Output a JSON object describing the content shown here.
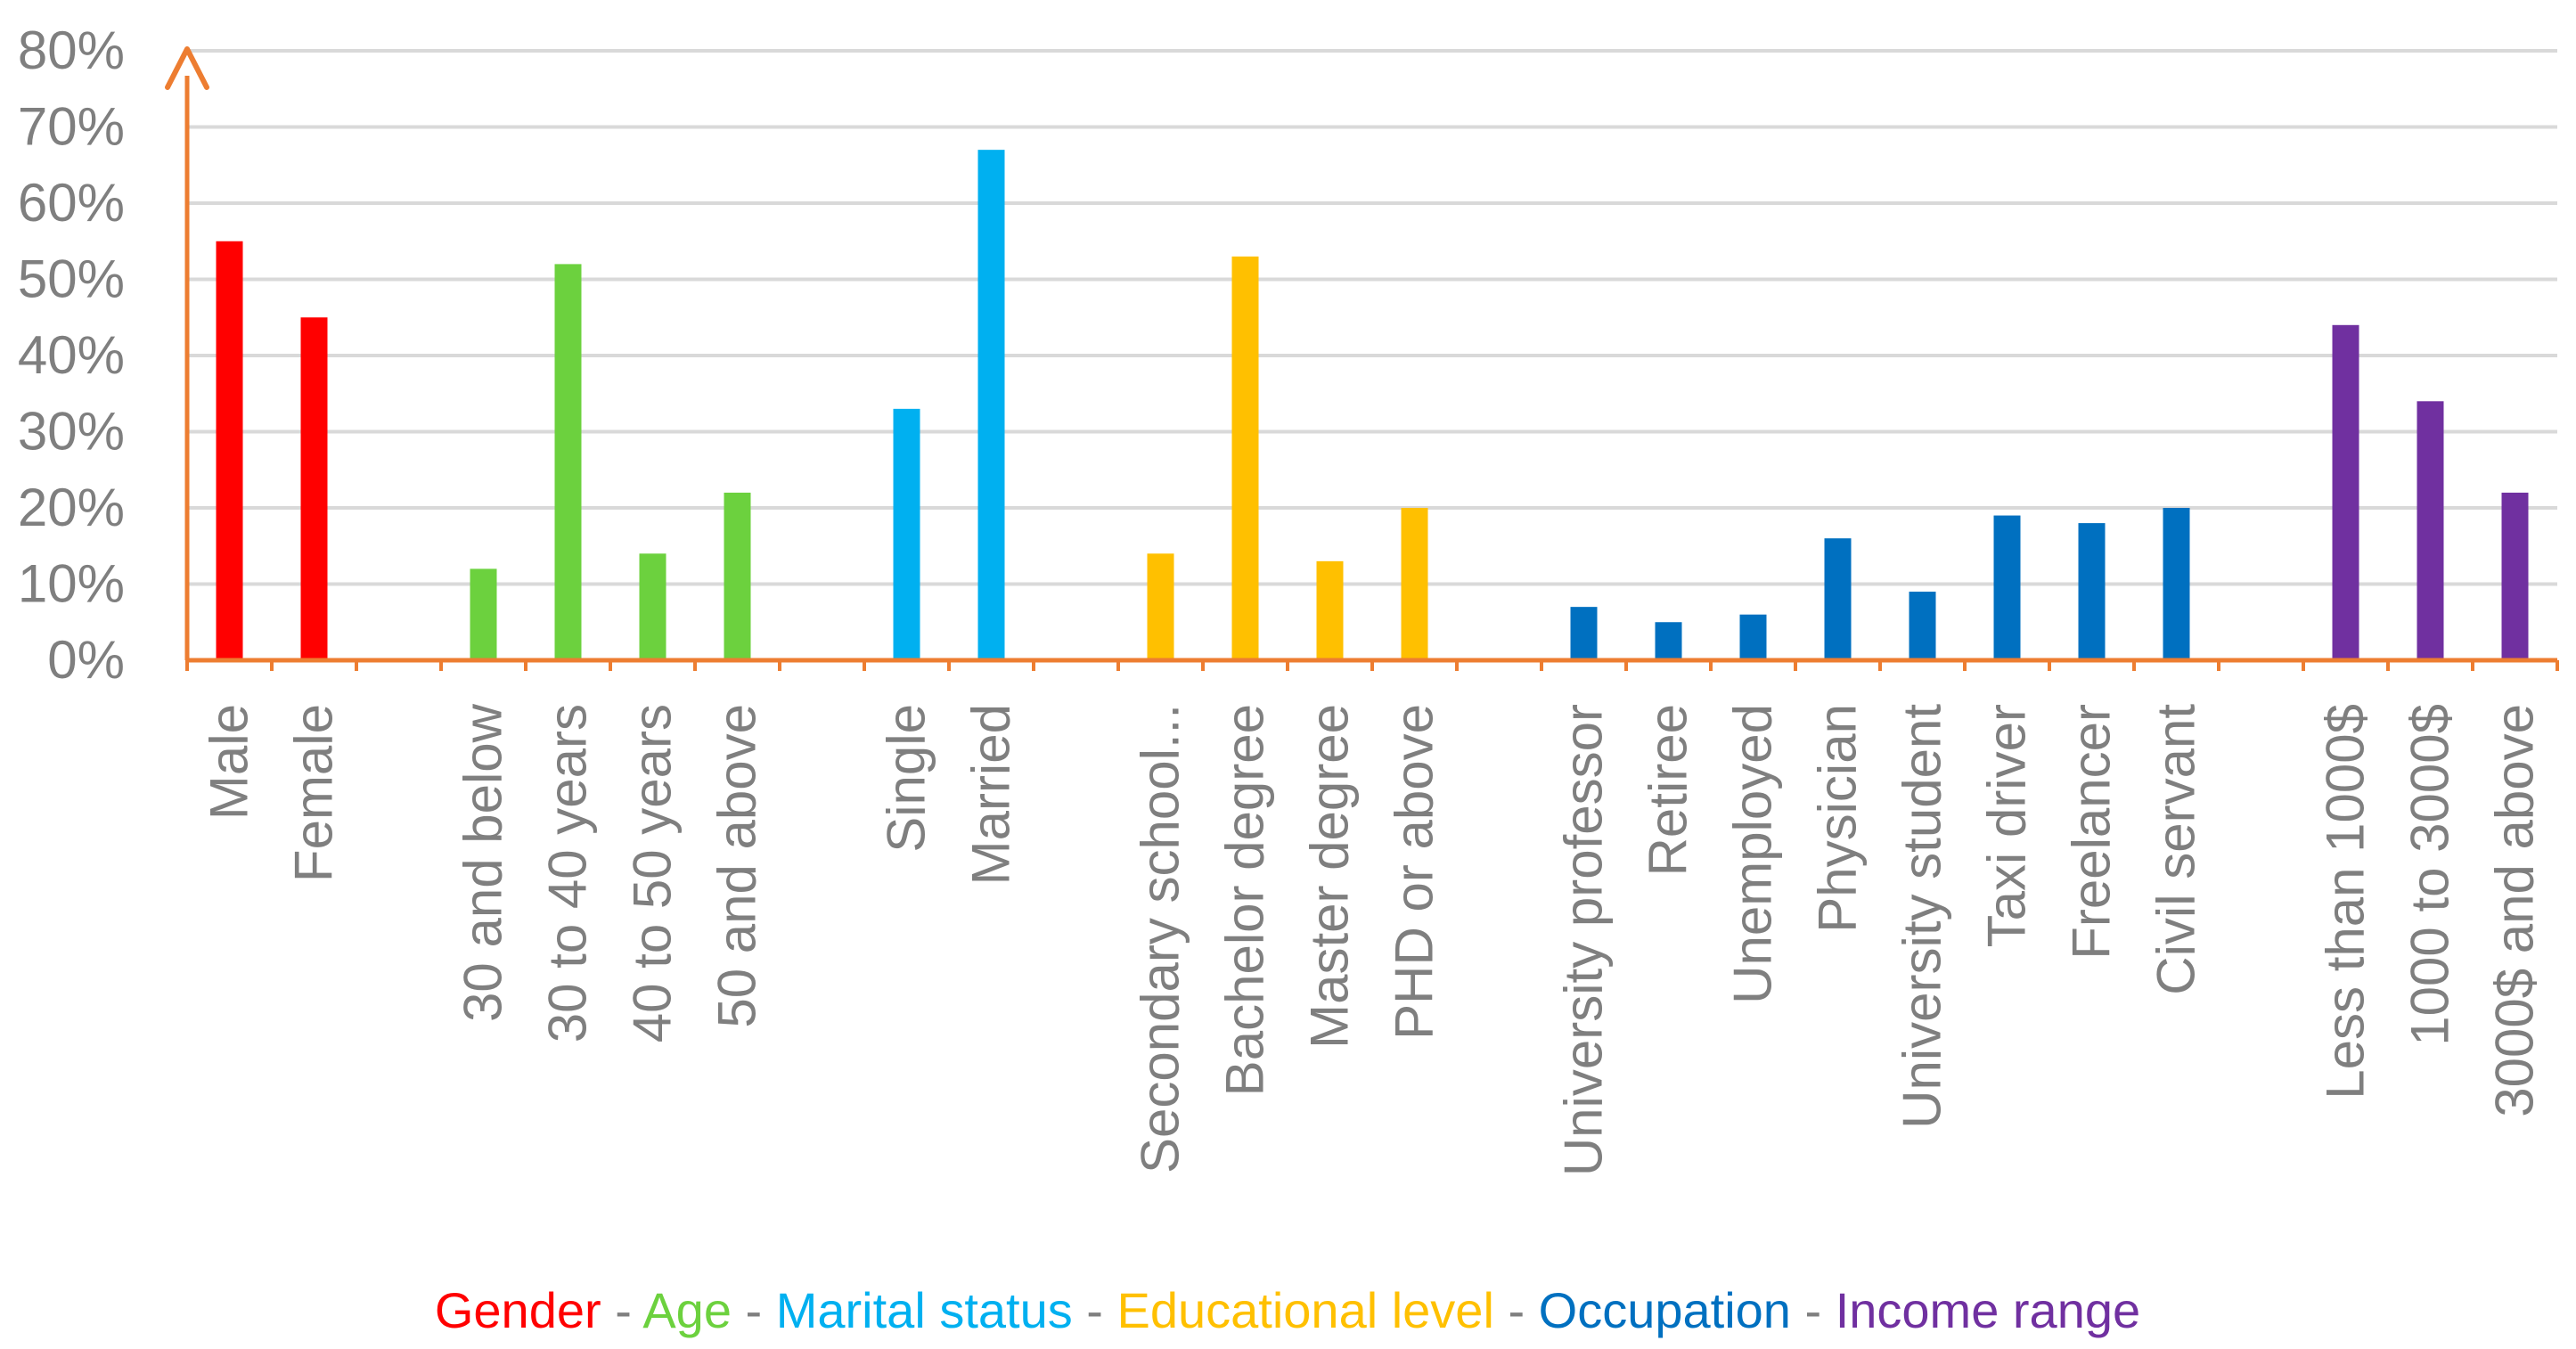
{
  "chart_data": {
    "type": "bar",
    "title": "",
    "xlabel": "",
    "ylabel": "",
    "ylim": [
      0,
      80
    ],
    "yticks": [
      "0%",
      "10%",
      "20%",
      "30%",
      "40%",
      "50%",
      "60%",
      "70%",
      "80%"
    ],
    "grid": true,
    "categories": [
      "Male",
      "Female",
      "",
      "30 and below",
      "30 to 40 years",
      "40 to 50 years",
      "50 and above",
      "",
      "Single",
      "Married",
      "",
      "Secondary school...",
      "Bachelor degree",
      "Master degree",
      "PHD or above",
      "",
      "University professor",
      "Retiree",
      "Unemployed",
      "Physician",
      "University student",
      "Taxi driver",
      "Freelancer",
      "Civil servant",
      "",
      "Less than 1000$",
      "1000 to 3000$",
      "3000$ and above"
    ],
    "values": [
      55,
      45,
      null,
      12,
      52,
      14,
      22,
      null,
      33,
      67,
      null,
      14,
      53,
      13,
      20,
      null,
      7,
      5,
      6,
      16,
      9,
      19,
      18,
      20,
      null,
      44,
      34,
      22
    ],
    "groups": [
      0,
      0,
      null,
      1,
      1,
      1,
      1,
      null,
      2,
      2,
      null,
      3,
      3,
      3,
      3,
      null,
      4,
      4,
      4,
      4,
      4,
      4,
      4,
      4,
      null,
      5,
      5,
      5
    ],
    "legend": {
      "position": "bottom",
      "separator": " - ",
      "entries": [
        {
          "name": "Gender",
          "color": "#ff0000"
        },
        {
          "name": "Age",
          "color": "#6cd13e"
        },
        {
          "name": "Marital status",
          "color": "#00b0f0"
        },
        {
          "name": "Educational level",
          "color": "#ffc000"
        },
        {
          "name": "Occupation",
          "color": "#0070c0"
        },
        {
          "name": "Income range",
          "color": "#7030a0"
        }
      ]
    },
    "colors": {
      "axis": "#ed7d31",
      "grid": "#d9d9d9",
      "text": "#7f7f7f",
      "separator": "#7f7f7f"
    }
  }
}
